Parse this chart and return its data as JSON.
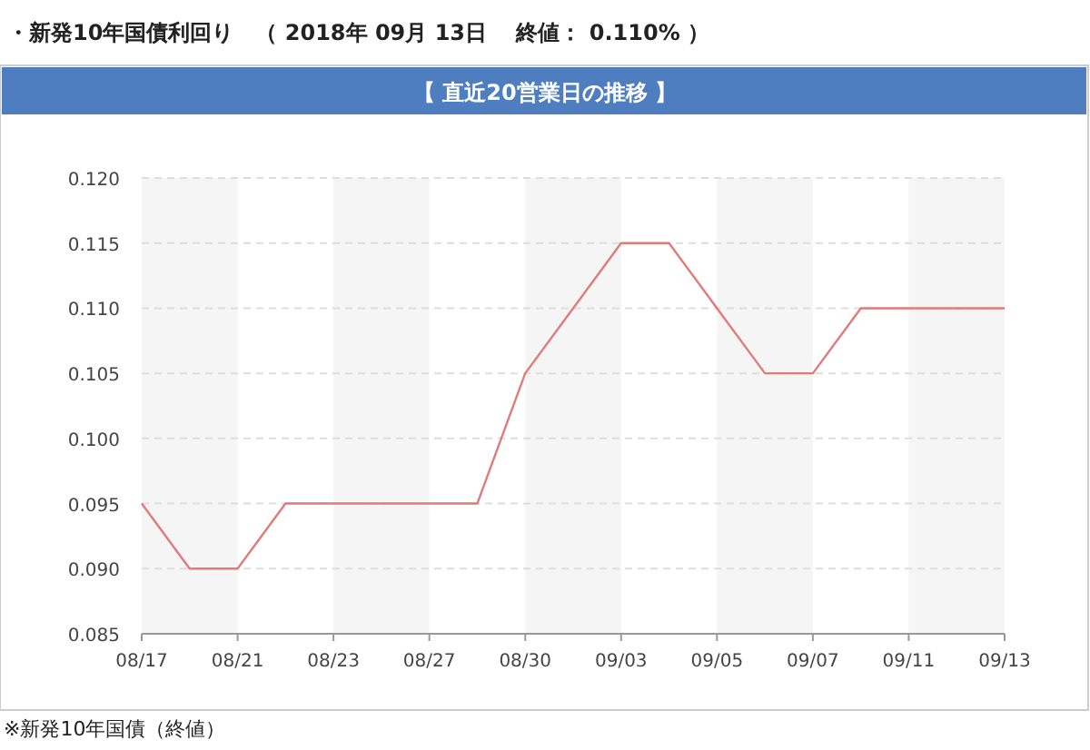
{
  "chart_data": {
    "type": "line",
    "title": "・新発10年国債利回り　（ 2018年 09月 13日　 終値： 0.110% ）",
    "subtitle": "【 直近20営業日の推移 】",
    "categories": [
      "08/17",
      null,
      "08/21",
      null,
      "08/23",
      null,
      "08/27",
      null,
      "08/30",
      null,
      "09/03",
      null,
      "09/05",
      null,
      "09/07",
      null,
      "09/11",
      null,
      "09/13"
    ],
    "series": [
      {
        "color": "#e07b7b",
        "values": [
          0.095,
          0.09,
          0.09,
          0.095,
          0.095,
          0.095,
          0.095,
          0.095,
          0.105,
          0.11,
          0.115,
          0.115,
          0.11,
          0.105,
          0.105,
          0.11,
          0.11,
          0.11,
          0.11
        ]
      }
    ],
    "ylim": [
      0.085,
      0.12
    ],
    "yticks": [
      {
        "value": 0.085,
        "label": "0.085"
      },
      {
        "value": 0.09,
        "label": "0.090"
      },
      {
        "value": 0.095,
        "label": "0.095"
      },
      {
        "value": 0.1,
        "label": "0.100"
      },
      {
        "value": 0.105,
        "label": "0.105"
      },
      {
        "value": 0.11,
        "label": "0.110"
      },
      {
        "value": 0.115,
        "label": "0.115"
      },
      {
        "value": 0.12,
        "label": "0.120"
      }
    ],
    "bands": [
      {
        "axis": "x",
        "from": "08/17",
        "to": "08/21",
        "color": "#f5f5f5"
      },
      {
        "axis": "x",
        "from": "08/23",
        "to": "08/27",
        "color": "#f5f5f5"
      },
      {
        "axis": "x",
        "from": "08/30",
        "to": "09/03",
        "color": "#f5f5f5"
      },
      {
        "axis": "x",
        "from": "09/05",
        "to": "09/07",
        "color": "#f5f5f5"
      },
      {
        "axis": "x",
        "from": "09/11",
        "to": "09/13",
        "color": "#f5f5f5"
      }
    ],
    "grid": "y",
    "marker": "none",
    "line_style": "solid",
    "annotations": [
      "※新発10年国債（終値）"
    ]
  }
}
